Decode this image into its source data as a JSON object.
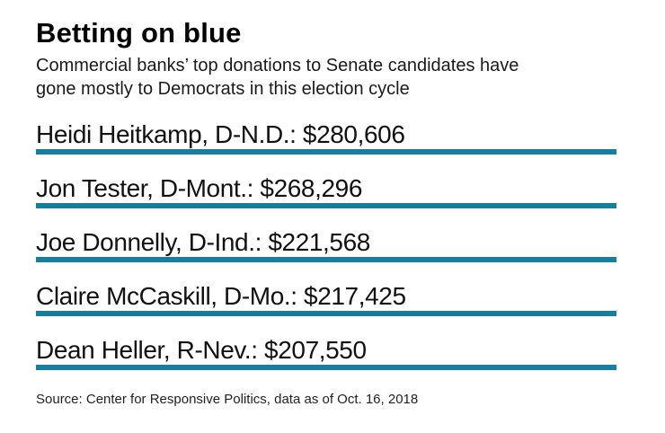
{
  "header": {
    "title": "Betting on blue",
    "subtitle": "Commercial banks’ top donations to Senate candidates have gone mostly to Democrats in this election cycle"
  },
  "chart_data": {
    "type": "table",
    "title": "Betting on blue",
    "subtitle": "Commercial banks’ top donations to Senate candidates have gone mostly to Democrats in this election cycle",
    "unit": "USD",
    "rows": [
      {
        "label": "Heidi Heitkamp, D-N.D.: $280,606",
        "candidate": "Heidi Heitkamp",
        "party_state": "D-N.D.",
        "amount": 280606,
        "amount_label": "$280,606"
      },
      {
        "label": "Jon Tester, D-Mont.: $268,296",
        "candidate": "Jon Tester",
        "party_state": "D-Mont.",
        "amount": 268296,
        "amount_label": "$268,296"
      },
      {
        "label": "Joe Donnelly, D-Ind.: $221,568",
        "candidate": "Joe Donnelly",
        "party_state": "D-Ind.",
        "amount": 221568,
        "amount_label": "$221,568"
      },
      {
        "label": "Claire McCaskill, D-Mo.: $217,425",
        "candidate": "Claire McCaskill",
        "party_state": "D-Mo.",
        "amount": 217425,
        "amount_label": "$217,425"
      },
      {
        "label": "Dean Heller, R-Nev.: $207,550",
        "candidate": "Dean Heller",
        "party_state": "R-Nev.",
        "amount": 207550,
        "amount_label": "$207,550"
      }
    ],
    "source": "Source: Center for Responsive Politics, data as of Oct. 16, 2018"
  },
  "colors": {
    "accent_teal": "#177f9b",
    "text": "#111111"
  }
}
